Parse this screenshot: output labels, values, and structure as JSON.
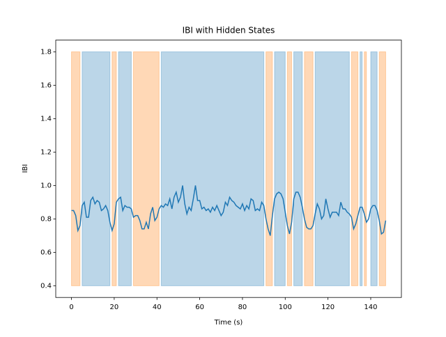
{
  "chart_data": {
    "type": "line",
    "title": "IBI with Hidden States",
    "xlabel": "Time (s)",
    "ylabel": "IBI",
    "x": [
      0,
      1,
      2,
      3,
      4,
      5,
      6,
      7,
      8,
      9,
      10,
      11,
      12,
      13,
      14,
      15,
      16,
      17,
      18,
      19,
      20,
      21,
      22,
      23,
      24,
      25,
      26,
      27,
      28,
      29,
      30,
      31,
      32,
      33,
      34,
      35,
      36,
      37,
      38,
      39,
      40,
      41,
      42,
      43,
      44,
      45,
      46,
      47,
      48,
      49,
      50,
      51,
      52,
      53,
      54,
      55,
      56,
      57,
      58,
      59,
      60,
      61,
      62,
      63,
      64,
      65,
      66,
      67,
      68,
      69,
      70,
      71,
      72,
      73,
      74,
      75,
      76,
      77,
      78,
      79,
      80,
      81,
      82,
      83,
      84,
      85,
      86,
      87,
      88,
      89,
      90,
      91,
      92,
      93,
      94,
      95,
      96,
      97,
      98,
      99,
      100,
      101,
      102,
      103,
      104,
      105,
      106,
      107,
      108,
      109,
      110,
      111,
      112,
      113,
      114,
      115,
      116,
      117,
      118,
      119,
      120,
      121,
      122,
      123,
      124,
      125,
      126,
      127,
      128,
      129,
      130,
      131,
      132,
      133,
      134,
      135,
      136,
      137,
      138,
      139,
      140,
      141,
      142,
      143,
      144,
      145,
      146,
      147
    ],
    "values": [
      0.85,
      0.85,
      0.82,
      0.73,
      0.76,
      0.88,
      0.9,
      0.81,
      0.81,
      0.91,
      0.93,
      0.89,
      0.91,
      0.9,
      0.85,
      0.86,
      0.88,
      0.85,
      0.78,
      0.73,
      0.77,
      0.9,
      0.92,
      0.93,
      0.85,
      0.88,
      0.87,
      0.87,
      0.86,
      0.81,
      0.82,
      0.82,
      0.79,
      0.74,
      0.74,
      0.78,
      0.74,
      0.83,
      0.87,
      0.79,
      0.81,
      0.86,
      0.88,
      0.87,
      0.89,
      0.88,
      0.92,
      0.86,
      0.93,
      0.96,
      0.9,
      0.93,
      1.0,
      0.89,
      0.83,
      0.87,
      0.85,
      0.92,
      1.0,
      0.91,
      0.91,
      0.86,
      0.87,
      0.85,
      0.86,
      0.84,
      0.87,
      0.85,
      0.88,
      0.85,
      0.82,
      0.84,
      0.9,
      0.88,
      0.93,
      0.91,
      0.9,
      0.88,
      0.87,
      0.86,
      0.89,
      0.85,
      0.88,
      0.86,
      0.92,
      0.91,
      0.85,
      0.86,
      0.85,
      0.9,
      0.88,
      0.8,
      0.74,
      0.7,
      0.82,
      0.92,
      0.95,
      0.96,
      0.95,
      0.92,
      0.84,
      0.76,
      0.71,
      0.78,
      0.92,
      0.96,
      0.96,
      0.93,
      0.87,
      0.8,
      0.75,
      0.74,
      0.74,
      0.76,
      0.83,
      0.89,
      0.86,
      0.8,
      0.82,
      0.92,
      0.86,
      0.81,
      0.84,
      0.84,
      0.84,
      0.82,
      0.9,
      0.86,
      0.86,
      0.84,
      0.83,
      0.81,
      0.74,
      0.77,
      0.82,
      0.87,
      0.87,
      0.83,
      0.78,
      0.8,
      0.86,
      0.88,
      0.88,
      0.85,
      0.79,
      0.71,
      0.72,
      0.79
    ],
    "color": "#1f77b4",
    "span_y": [
      0.4,
      1.8
    ],
    "spans": [
      {
        "x": [
          0,
          4
        ],
        "color": "#ff7f0e"
      },
      {
        "x": [
          5,
          18
        ],
        "color": "#1f77b4"
      },
      {
        "x": [
          19,
          21
        ],
        "color": "#ff7f0e"
      },
      {
        "x": [
          22,
          28
        ],
        "color": "#1f77b4"
      },
      {
        "x": [
          29,
          41
        ],
        "color": "#ff7f0e"
      },
      {
        "x": [
          42,
          90
        ],
        "color": "#1f77b4"
      },
      {
        "x": [
          91,
          94
        ],
        "color": "#ff7f0e"
      },
      {
        "x": [
          95,
          100
        ],
        "color": "#1f77b4"
      },
      {
        "x": [
          101,
          103
        ],
        "color": "#ff7f0e"
      },
      {
        "x": [
          104,
          108
        ],
        "color": "#1f77b4"
      },
      {
        "x": [
          109,
          113
        ],
        "color": "#ff7f0e"
      },
      {
        "x": [
          114,
          130
        ],
        "color": "#1f77b4"
      },
      {
        "x": [
          131,
          134
        ],
        "color": "#ff7f0e"
      },
      {
        "x": [
          135,
          136
        ],
        "color": "#1f77b4"
      },
      {
        "x": [
          137,
          138
        ],
        "color": "#ff7f0e"
      },
      {
        "x": [
          140,
          143
        ],
        "color": "#1f77b4"
      },
      {
        "x": [
          144,
          147
        ],
        "color": "#ff7f0e"
      }
    ],
    "span_opacity": 0.3,
    "xlim": [
      -7.35,
      154.35
    ],
    "xticks": [
      0,
      20,
      40,
      60,
      80,
      100,
      120,
      140
    ],
    "ylim": [
      0.33,
      1.87
    ],
    "yticks": [
      0.4,
      0.6,
      0.8,
      {
        "value": 1,
        "label": "1.0"
      },
      1.2,
      1.4,
      1.6,
      1.8
    ]
  }
}
